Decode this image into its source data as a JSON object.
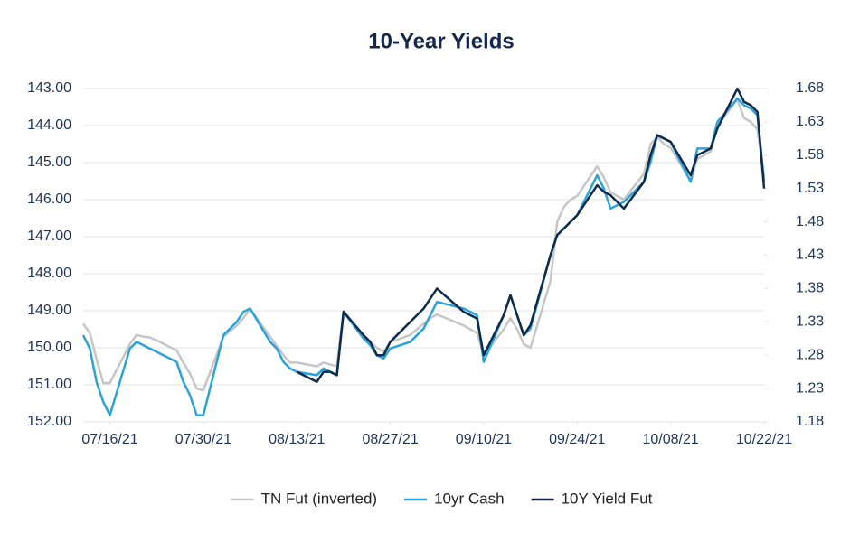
{
  "chart_data": {
    "type": "line",
    "title": "10-Year Yields",
    "x": [
      "07/12/21",
      "07/13/21",
      "07/14/21",
      "07/15/21",
      "07/16/21",
      "07/19/21",
      "07/20/21",
      "07/21/21",
      "07/22/21",
      "07/23/21",
      "07/26/21",
      "07/27/21",
      "07/28/21",
      "07/29/21",
      "07/30/21",
      "08/02/21",
      "08/03/21",
      "08/04/21",
      "08/05/21",
      "08/06/21",
      "08/09/21",
      "08/10/21",
      "08/11/21",
      "08/12/21",
      "08/13/21",
      "08/16/21",
      "08/17/21",
      "08/18/21",
      "08/19/21",
      "08/20/21",
      "08/23/21",
      "08/24/21",
      "08/25/21",
      "08/26/21",
      "08/27/21",
      "08/30/21",
      "08/31/21",
      "09/01/21",
      "09/02/21",
      "09/03/21",
      "09/07/21",
      "09/08/21",
      "09/09/21",
      "09/10/21",
      "09/13/21",
      "09/14/21",
      "09/15/21",
      "09/16/21",
      "09/17/21",
      "09/20/21",
      "09/21/21",
      "09/22/21",
      "09/23/21",
      "09/24/21",
      "09/27/21",
      "09/28/21",
      "09/29/21",
      "09/30/21",
      "10/01/21",
      "10/04/21",
      "10/05/21",
      "10/06/21",
      "10/07/21",
      "10/08/21",
      "10/11/21",
      "10/12/21",
      "10/13/21",
      "10/14/21",
      "10/15/21",
      "10/18/21",
      "10/19/21",
      "10/20/21",
      "10/21/21",
      "10/22/21"
    ],
    "xlim": [
      "07/12/21",
      "10/22/21"
    ],
    "xticks": [
      "07/16/21",
      "07/30/21",
      "08/13/21",
      "08/27/21",
      "09/10/21",
      "09/24/21",
      "10/08/21",
      "10/22/21"
    ],
    "ylim": [
      152,
      143
    ],
    "yticks": [
      {
        "value": 143,
        "label": "143.00"
      },
      {
        "value": 144,
        "label": "144.00"
      },
      {
        "value": 145,
        "label": "145.00"
      },
      {
        "value": 146,
        "label": "146.00"
      },
      {
        "value": 147,
        "label": "147.00"
      },
      {
        "value": 148,
        "label": "148.00"
      },
      {
        "value": 149,
        "label": "149.00"
      },
      {
        "value": 150,
        "label": "150.00"
      },
      {
        "value": 151,
        "label": "151.00"
      },
      {
        "value": 152,
        "label": "152.00"
      }
    ],
    "y2lim": [
      1.18,
      1.68
    ],
    "y2ticks": [
      1.18,
      1.23,
      1.28,
      1.33,
      1.38,
      1.43,
      1.48,
      1.53,
      1.58,
      1.63,
      1.68
    ],
    "grid": true,
    "legend": "bottom",
    "series": [
      {
        "name": "TN Fut (inverted)",
        "color": "#c6c6c6",
        "axis": "y",
        "values": [
          149.35,
          149.6,
          150.3,
          150.95,
          150.95,
          149.9,
          149.65,
          149.7,
          149.72,
          149.8,
          150.07,
          150.4,
          150.7,
          151.1,
          151.15,
          149.7,
          149.55,
          149.4,
          149.2,
          148.95,
          149.7,
          149.95,
          150.2,
          150.4,
          150.4,
          150.5,
          150.4,
          150.45,
          150.5,
          149.0,
          149.7,
          149.85,
          150.0,
          150.1,
          149.85,
          149.65,
          149.5,
          149.35,
          149.2,
          149.1,
          149.4,
          149.5,
          149.6,
          150.2,
          149.5,
          149.2,
          149.5,
          149.9,
          150.0,
          148.2,
          146.6,
          146.2,
          146.0,
          145.9,
          145.1,
          145.4,
          145.8,
          145.9,
          146.0,
          145.3,
          144.5,
          144.3,
          144.5,
          144.6,
          145.5,
          144.9,
          144.8,
          144.7,
          144.0,
          143.3,
          143.8,
          143.9,
          144.1,
          145.4
        ]
      },
      {
        "name": "10yr Cash",
        "color": "#2aa3d8",
        "axis": "y2",
        "values": [
          1.31,
          1.29,
          1.24,
          1.21,
          1.19,
          1.29,
          1.3,
          1.295,
          1.29,
          1.285,
          1.27,
          1.24,
          1.22,
          1.19,
          1.19,
          1.31,
          1.32,
          1.33,
          1.345,
          1.35,
          1.3,
          1.29,
          1.27,
          1.26,
          1.255,
          1.25,
          1.26,
          1.255,
          1.25,
          1.345,
          1.305,
          1.295,
          1.28,
          1.275,
          1.29,
          1.3,
          1.31,
          1.32,
          1.34,
          1.36,
          1.35,
          1.345,
          1.34,
          1.27,
          1.34,
          1.37,
          1.34,
          1.31,
          1.32,
          1.43,
          1.46,
          1.47,
          1.48,
          1.49,
          1.55,
          1.53,
          1.5,
          1.505,
          1.51,
          1.54,
          1.57,
          1.61,
          1.605,
          1.6,
          1.54,
          1.59,
          1.59,
          1.59,
          1.63,
          1.665,
          1.655,
          1.65,
          1.64,
          1.54
        ]
      },
      {
        "name": "10Y Yield Fut",
        "color": "#0f2a4a",
        "axis": "y2",
        "values": [
          null,
          null,
          null,
          null,
          null,
          null,
          null,
          null,
          null,
          null,
          null,
          null,
          null,
          null,
          null,
          null,
          null,
          null,
          null,
          null,
          null,
          null,
          null,
          null,
          1.255,
          1.24,
          1.255,
          1.255,
          1.25,
          1.345,
          1.31,
          1.3,
          1.28,
          1.28,
          1.3,
          1.33,
          1.34,
          1.35,
          1.365,
          1.38,
          1.345,
          1.34,
          1.335,
          1.28,
          1.34,
          1.37,
          1.34,
          1.31,
          1.325,
          1.43,
          1.46,
          1.47,
          1.48,
          1.49,
          1.535,
          1.525,
          1.52,
          1.51,
          1.5,
          1.54,
          1.58,
          1.61,
          1.605,
          1.6,
          1.55,
          1.58,
          1.585,
          1.59,
          1.62,
          1.68,
          1.66,
          1.655,
          1.645,
          1.53
        ]
      }
    ]
  }
}
